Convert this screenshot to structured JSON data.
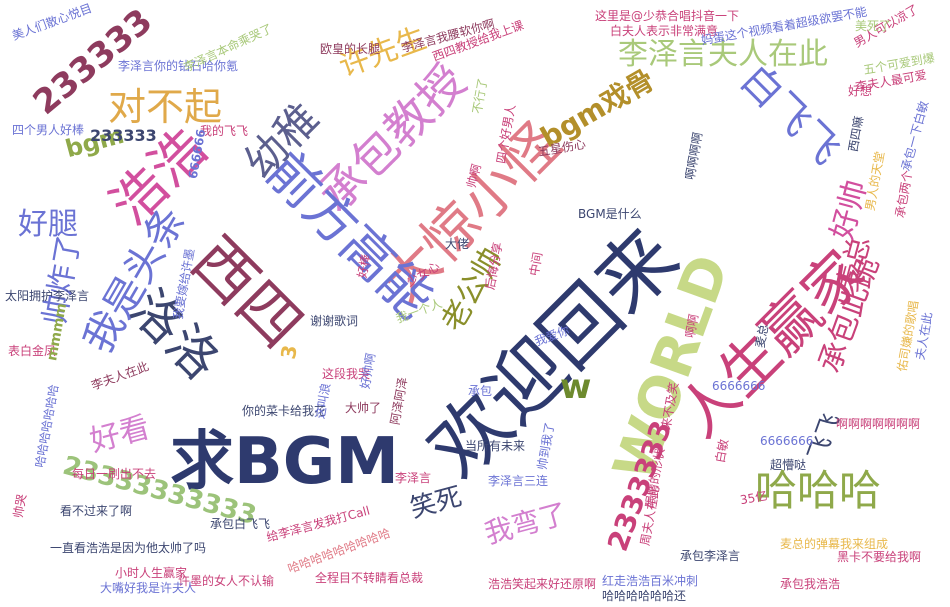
{
  "words": [
    {
      "text": "欢迎回来",
      "color": "#2e3a6e"
    },
    {
      "text": "大惊小怪",
      "color": "#e07a86"
    },
    {
      "text": "承包教授",
      "color": "#d37fcf"
    },
    {
      "text": "前方高能",
      "color": "#6b73d4"
    },
    {
      "text": "西四",
      "color": "#8e3b5e"
    },
    {
      "text": "浩浩",
      "color": "#d24f9e"
    },
    {
      "text": "幼稚",
      "color": "#5c5f8e"
    },
    {
      "text": "人生赢家",
      "color": "#c9417a"
    },
    {
      "text": "求BGM",
      "color": "#2e3a6e"
    },
    {
      "text": "洛洛",
      "color": "#3c4670"
    },
    {
      "text": "WORLD",
      "color": "#c7d987"
    },
    {
      "text": "我是头条",
      "color": "#6b73d4"
    },
    {
      "text": "白飞飞",
      "color": "#6b73d4"
    },
    {
      "text": "李泽言夫人在此",
      "color": "#a9c97a"
    },
    {
      "text": "对不起",
      "color": "#e0a94a"
    },
    {
      "text": "233333",
      "color": "#8e3b5e"
    },
    {
      "text": "许先生",
      "color": "#e8b84b"
    },
    {
      "text": "bgm戏骨",
      "color": "#b38f2a"
    },
    {
      "text": "哈哈哈",
      "color": "#8fa94a"
    },
    {
      "text": "23333333333",
      "color": "#9cc37a"
    },
    {
      "text": "2333333",
      "color": "#c9417a"
    },
    {
      "text": "帅炸了",
      "color": "#6b73d4"
    },
    {
      "text": "好腿",
      "color": "#6b73d4"
    },
    {
      "text": "好看",
      "color": "#d37fcf"
    },
    {
      "text": "老公帅",
      "color": "#8a8f2a"
    },
    {
      "text": "承包此跪",
      "color": "#c9417a"
    },
    {
      "text": "麦总",
      "color": "#c9417a"
    },
    {
      "text": "笑死",
      "color": "#3c4670"
    },
    {
      "text": "我弯了",
      "color": "#d37fcf"
    },
    {
      "text": "好帅",
      "color": "#d24f9e"
    },
    {
      "text": "bgm",
      "color": "#8fa94a"
    },
    {
      "text": "w",
      "color": "#6d8a2e"
    },
    {
      "text": "飞飞",
      "color": "#3c4670"
    },
    {
      "text": "233333",
      "color": "#3c4670"
    },
    {
      "text": "美人们散心悦目",
      "color": "#6b73d4"
    },
    {
      "text": "李泽言你的钻石哈你氪",
      "color": "#6b73d4"
    },
    {
      "text": "李泽言本命乘哭了",
      "color": "#a9c97a"
    },
    {
      "text": "这里是@少恭合唱抖音一下",
      "color": "#c9417a"
    },
    {
      "text": "欧皇的长腿",
      "color": "#8e3b5e"
    },
    {
      "text": "李泽言我腰软你啊",
      "color": "#8e3b5e"
    },
    {
      "text": "白夫人表示非常满意",
      "color": "#c9417a"
    },
    {
      "text": "妈蛋这个视频看着超级欲罢不能",
      "color": "#6b73d4"
    },
    {
      "text": "男人可以凉了",
      "color": "#c9417a"
    },
    {
      "text": "西四教授给我上课",
      "color": "#c9417a"
    },
    {
      "text": "四个男人好棒",
      "color": "#6b73d4"
    },
    {
      "text": "我的飞飞",
      "color": "#c9417a"
    },
    {
      "text": "五星伤心",
      "color": "#8e3b5e"
    },
    {
      "text": "不行了",
      "color": "#a9c97a"
    },
    {
      "text": "承包一下白敏",
      "color": "#6b73d4"
    },
    {
      "text": "帅啊",
      "color": "#c9417a"
    },
    {
      "text": "BGM是什么",
      "color": "#3c4670"
    },
    {
      "text": "四个好男人",
      "color": "#c9417a"
    },
    {
      "text": "太阳拥护李泽言",
      "color": "#3c4670"
    },
    {
      "text": "谢谢歌词",
      "color": "#3c4670"
    },
    {
      "text": "后悔分享",
      "color": "#c9417a"
    },
    {
      "text": "少女心",
      "color": "#c9417a"
    },
    {
      "text": "白敏",
      "color": "#c9417a"
    },
    {
      "text": "表白金凤",
      "color": "#c9417a"
    },
    {
      "text": "我爱你",
      "color": "#6b73d4"
    },
    {
      "text": "我要嫁给许墨",
      "color": "#6b73d4"
    },
    {
      "text": "李夫人在此",
      "color": "#8e3b5e"
    },
    {
      "text": "你的菜卡给我花",
      "color": "#3c4670"
    },
    {
      "text": "这叫浪",
      "color": "#6b73d4"
    },
    {
      "text": "大帅了",
      "color": "#8e3b5e"
    },
    {
      "text": "阿泽阿泽",
      "color": "#8e3b5e"
    },
    {
      "text": "这段我哭",
      "color": "#c9417a"
    },
    {
      "text": "当所有未来",
      "color": "#3c4670"
    },
    {
      "text": "帅到我了",
      "color": "#6b73d4"
    },
    {
      "text": "来不及笑",
      "color": "#c9417a"
    },
    {
      "text": "每日一刷出不去",
      "color": "#c9417a"
    },
    {
      "text": "哈哈哈哈哈哈哈",
      "color": "#6b73d4"
    },
    {
      "text": "看不过来了啊",
      "color": "#3c4670"
    },
    {
      "text": "一直看浩浩是因为他太帅了吗",
      "color": "#3c4670"
    },
    {
      "text": "许墨的女人不认输",
      "color": "#c9417a"
    },
    {
      "text": "小时人生赢家",
      "color": "#c9417a"
    },
    {
      "text": "大嘴好我是许夫人",
      "color": "#6b73d4"
    },
    {
      "text": "给李泽言发我打Call",
      "color": "#c9417a"
    },
    {
      "text": "全程目不转睛看总裁",
      "color": "#c9417a"
    },
    {
      "text": "浩浩笑起来好还原啊",
      "color": "#c9417a"
    },
    {
      "text": "红走浩浩百米冲刺",
      "color": "#6b73d4"
    },
    {
      "text": "哈哈哈哈哈哈还",
      "color": "#3c4670"
    },
    {
      "text": "承包李泽言",
      "color": "#3c4670"
    },
    {
      "text": "承包我浩浩",
      "color": "#c9417a"
    },
    {
      "text": "麦总的弹幕我来组成",
      "color": "#e8b84b"
    },
    {
      "text": "黑卡不要给我啊",
      "color": "#c9417a"
    },
    {
      "text": "超懵哒",
      "color": "#3c4670"
    },
    {
      "text": "啊啊啊啊啊啊啊",
      "color": "#c9417a"
    },
    {
      "text": "周夫人在此",
      "color": "#c9417a"
    },
    {
      "text": "承包白飞飞",
      "color": "#3c4670"
    },
    {
      "text": "35亿",
      "color": "#c9417a"
    },
    {
      "text": "哈哈哈哈哈哈哈哈哈",
      "color": "#e07a86"
    },
    {
      "text": "李泽言三连",
      "color": "#6b73d4"
    },
    {
      "text": "眼睛的形状",
      "color": "#c9417a"
    },
    {
      "text": "好帅啊",
      "color": "#6b73d4"
    },
    {
      "text": "承包",
      "color": "#6b73d4"
    },
    {
      "text": "好想",
      "color": "#c9417a"
    },
    {
      "text": "6666666",
      "color": "#6b73d4"
    },
    {
      "text": "麦总",
      "color": "#3c4670"
    },
    {
      "text": "中间",
      "color": "#c9417a"
    },
    {
      "text": "佑司嫌的歌唱",
      "color": "#e8b84b"
    },
    {
      "text": "男人的天堂",
      "color": "#e8b84b"
    },
    {
      "text": "五个可爱到爆",
      "color": "#a9c97a"
    },
    {
      "text": "美死了",
      "color": "#a9c97a"
    },
    {
      "text": "李夫人最可爱",
      "color": "#c9417a"
    },
    {
      "text": "承包两个",
      "color": "#c9417a"
    },
    {
      "text": "夫人在此",
      "color": "#6b73d4"
    },
    {
      "text": "西四嘛",
      "color": "#3c4670"
    },
    {
      "text": "啊啊啊啊",
      "color": "#3c4670"
    },
    {
      "text": "李泽言",
      "color": "#c9417a"
    },
    {
      "text": "3",
      "color": "#e8b84b"
    },
    {
      "text": "大佬",
      "color": "#3c4670"
    },
    {
      "text": "啊啊",
      "color": "#c9417a"
    },
    {
      "text": "我一个人",
      "color": "#a9c97a"
    },
    {
      "text": "好棒",
      "color": "#c9417a"
    },
    {
      "text": "mmmm",
      "color": "#8fa94a"
    },
    {
      "text": "666666",
      "color": "#6b73d4"
    },
    {
      "text": "帅哭",
      "color": "#c9417a"
    },
    {
      "text": "6666666",
      "color": "#6b73d4"
    }
  ]
}
